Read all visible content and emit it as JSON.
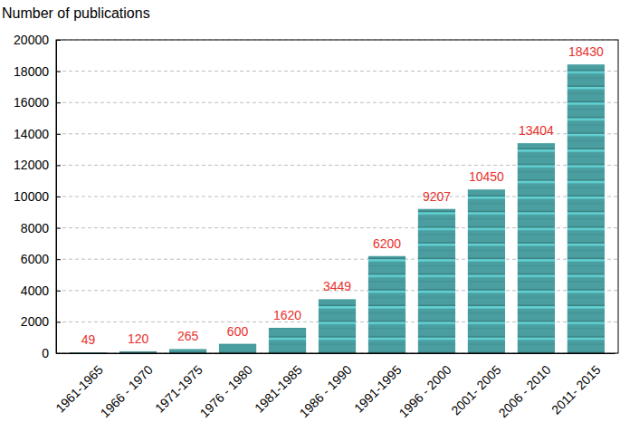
{
  "chart_data": {
    "type": "bar",
    "y_label": "Number of publications",
    "categories": [
      "1961-1965",
      "1966 - 1970",
      "1971-1975",
      "1976 - 1980",
      "1981-1985",
      "1986 - 1990",
      "1991-1995",
      "1996 - 2000",
      "2001- 2005",
      "2006 - 2010",
      "2011- 2015"
    ],
    "values": [
      49,
      120,
      265,
      600,
      1620,
      3449,
      6200,
      9207,
      10450,
      13404,
      18430
    ],
    "color": "#4a9ea0",
    "ylim": [
      0,
      20000
    ],
    "yticks": [
      0,
      2000,
      4000,
      6000,
      8000,
      10000,
      12000,
      14000,
      16000,
      18000,
      20000
    ],
    "grid": true,
    "data_labels": true
  }
}
